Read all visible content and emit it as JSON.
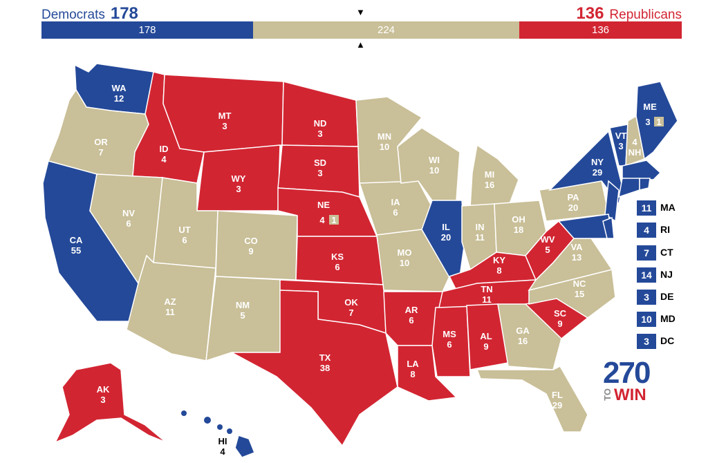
{
  "header": {
    "dem_name": "Democrats",
    "dem_total": "178",
    "rep_name": "Republicans",
    "rep_total": "136",
    "bar_dem": "178",
    "bar_tossup": "224",
    "bar_rep": "136"
  },
  "colors": {
    "dem": "#244999",
    "rep": "#d22532",
    "tossup": "#c9bf98"
  },
  "states": {
    "WA": {
      "name": "WA",
      "ev": "12"
    },
    "OR": {
      "name": "OR",
      "ev": "7"
    },
    "CA": {
      "name": "CA",
      "ev": "55"
    },
    "ID": {
      "name": "ID",
      "ev": "4"
    },
    "NV": {
      "name": "NV",
      "ev": "6"
    },
    "MT": {
      "name": "MT",
      "ev": "3"
    },
    "WY": {
      "name": "WY",
      "ev": "3"
    },
    "UT": {
      "name": "UT",
      "ev": "6"
    },
    "AZ": {
      "name": "AZ",
      "ev": "11"
    },
    "CO": {
      "name": "CO",
      "ev": "9"
    },
    "NM": {
      "name": "NM",
      "ev": "5"
    },
    "ND": {
      "name": "ND",
      "ev": "3"
    },
    "SD": {
      "name": "SD",
      "ev": "3"
    },
    "NE": {
      "name": "NE",
      "ev": "4",
      "extra": "1"
    },
    "KS": {
      "name": "KS",
      "ev": "6"
    },
    "OK": {
      "name": "OK",
      "ev": "7"
    },
    "TX": {
      "name": "TX",
      "ev": "38"
    },
    "MN": {
      "name": "MN",
      "ev": "10"
    },
    "IA": {
      "name": "IA",
      "ev": "6"
    },
    "MO": {
      "name": "MO",
      "ev": "10"
    },
    "AR": {
      "name": "AR",
      "ev": "6"
    },
    "LA": {
      "name": "LA",
      "ev": "8"
    },
    "WI": {
      "name": "WI",
      "ev": "10"
    },
    "IL": {
      "name": "IL",
      "ev": "20"
    },
    "MS": {
      "name": "MS",
      "ev": "6"
    },
    "MI": {
      "name": "MI",
      "ev": "16"
    },
    "IN": {
      "name": "IN",
      "ev": "11"
    },
    "KY": {
      "name": "KY",
      "ev": "8"
    },
    "TN": {
      "name": "TN",
      "ev": "11"
    },
    "AL": {
      "name": "AL",
      "ev": "9"
    },
    "OH": {
      "name": "OH",
      "ev": "18"
    },
    "GA": {
      "name": "GA",
      "ev": "16"
    },
    "FL": {
      "name": "FL",
      "ev": "29"
    },
    "SC": {
      "name": "SC",
      "ev": "9"
    },
    "NC": {
      "name": "NC",
      "ev": "15"
    },
    "VA": {
      "name": "VA",
      "ev": "13"
    },
    "WV": {
      "name": "WV",
      "ev": "5"
    },
    "PA": {
      "name": "PA",
      "ev": "20"
    },
    "NY": {
      "name": "NY",
      "ev": "29"
    },
    "VT": {
      "name": "VT",
      "ev": "3"
    },
    "NH": {
      "name": "NH",
      "ev": "4"
    },
    "ME": {
      "name": "ME",
      "ev": "3",
      "extra": "1"
    },
    "AK": {
      "name": "AK",
      "ev": "3"
    },
    "HI": {
      "name": "HI",
      "ev": "4"
    }
  },
  "small_states": [
    {
      "abbr": "MA",
      "ev": "11"
    },
    {
      "abbr": "RI",
      "ev": "4"
    },
    {
      "abbr": "CT",
      "ev": "7"
    },
    {
      "abbr": "NJ",
      "ev": "14"
    },
    {
      "abbr": "DE",
      "ev": "3"
    },
    {
      "abbr": "MD",
      "ev": "10"
    },
    {
      "abbr": "DC",
      "ev": "3"
    }
  ],
  "logo": {
    "number": "270",
    "to": "TO",
    "win": "WIN"
  }
}
